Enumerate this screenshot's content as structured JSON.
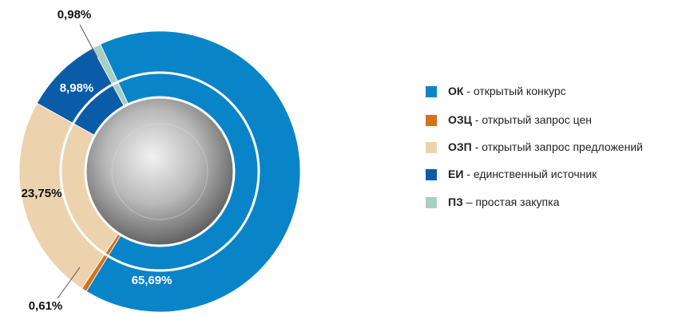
{
  "chart_data": {
    "type": "donut",
    "categories": [
      "ОК",
      "ОЗЦ",
      "ОЗП",
      "ЕИ",
      "ПЗ"
    ],
    "descriptions": [
      " - открытый конкурс",
      " - открытый запрос цен",
      " - открытый запрос предложений",
      " - единственный источник",
      " – простая закупка"
    ],
    "values": [
      65.69,
      0.61,
      23.75,
      8.98,
      0.98
    ],
    "value_labels": [
      "65,69%",
      "0,61%",
      "23,75%",
      "8,98%",
      "0,98%"
    ],
    "colors": [
      "#0a84c8",
      "#d2731e",
      "#ecd3ae",
      "#0b5ca8",
      "#a8cfc4"
    ]
  }
}
